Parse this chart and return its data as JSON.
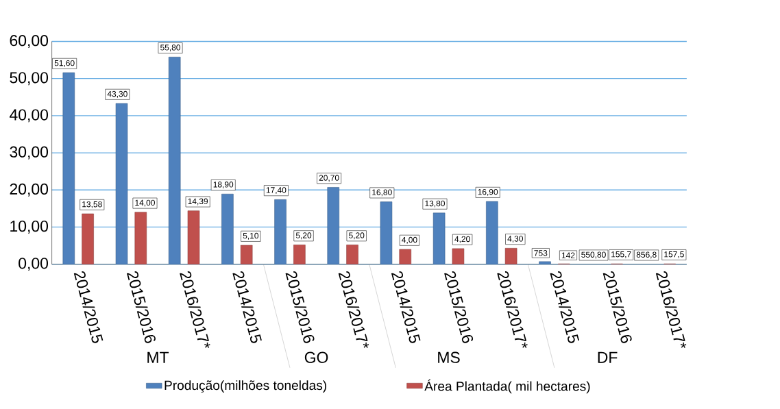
{
  "chart_data": {
    "type": "bar",
    "categories": [
      "2014/2015",
      "2015/2016",
      "2016/2017*",
      "2014/2015",
      "2015/2016",
      "2016/2017*",
      "2014/2015",
      "2015/2016",
      "2016/2017*",
      "2014/2015",
      "2015/2016",
      "2016/2017*"
    ],
    "series": [
      {
        "name": "Produção(milhões toneldas)",
        "color": "#4f81bd",
        "values": [
          51.6,
          43.3,
          55.8,
          18.9,
          17.4,
          20.7,
          16.8,
          13.8,
          16.9,
          0.7,
          null,
          null
        ],
        "value_labels": [
          "51,60",
          "43,30",
          "55,80",
          "18,90",
          "17,40",
          "20,70",
          "16,80",
          "13,80",
          "16,90",
          null,
          null,
          null
        ]
      },
      {
        "name": "Área Plantada( mil hectares)",
        "color": "#c0504d",
        "values": [
          13.58,
          14.0,
          14.39,
          5.1,
          5.2,
          5.2,
          4.0,
          4.2,
          4.3,
          0.1,
          0.1,
          0.1
        ],
        "value_labels": [
          "13,58",
          "14,00",
          "14,39",
          "5,10",
          "5,20",
          "5,20",
          "4,00",
          "4,20",
          "4,30",
          null,
          null,
          null
        ]
      }
    ],
    "annotations": [
      "MT",
      "GO",
      "MS",
      "DF",
      "753",
      "142",
      "550,80",
      "155,7",
      "856,8",
      "157,5"
    ],
    "ylim": [
      0,
      60
    ],
    "yticks": [
      {
        "value": 0,
        "label": "0,00"
      },
      {
        "value": 10,
        "label": "10,00"
      },
      {
        "value": 20,
        "label": "20,00"
      },
      {
        "value": 30,
        "label": "30,00"
      },
      {
        "value": 40,
        "label": "40,00"
      },
      {
        "value": 50,
        "label": "50,00"
      },
      {
        "value": 60,
        "label": "60,00"
      }
    ],
    "grid": "y",
    "legend": "bottom"
  }
}
